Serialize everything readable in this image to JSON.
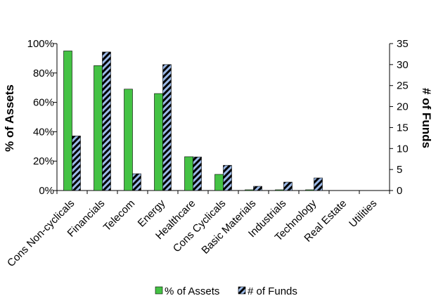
{
  "chart_data": {
    "type": "bar",
    "categories": [
      "Cons Non-cyclicals",
      "Financials",
      "Telecom",
      "Energy",
      "Healthcare",
      "Cons Cyclicals",
      "Basic Materials",
      "Industrials",
      "Technology",
      "Real Estate",
      "Utilities"
    ],
    "series": [
      {
        "name": "% of Assets",
        "axis": "left",
        "values": [
          95,
          85,
          69,
          66,
          23,
          11,
          0.5,
          0.5,
          0.5,
          0,
          0
        ],
        "color": "#44c244"
      },
      {
        "name": "# of Funds",
        "axis": "right",
        "values": [
          13,
          33,
          4,
          30,
          8,
          6,
          1,
          2,
          3,
          0,
          0
        ],
        "color": "#9ab8e6",
        "pattern": "diagonal-hatch"
      }
    ],
    "ylabel_left": "% of Assets",
    "ylabel_right": "# of Funds",
    "ylim_left": [
      0,
      100
    ],
    "ylim_right": [
      0,
      35
    ],
    "yticks_left": [
      "0%",
      "20%",
      "40%",
      "60%",
      "80%",
      "100%"
    ],
    "yticks_right": [
      "0",
      "5",
      "10",
      "15",
      "20",
      "25",
      "30",
      "35"
    ],
    "grid": false,
    "legend": "bottom"
  }
}
